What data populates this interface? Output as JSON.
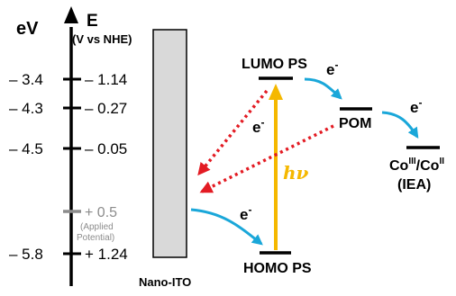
{
  "axis": {
    "left_unit": "eV",
    "right_unit": "E",
    "right_unit_sub": "(V vs NHE)",
    "ticks": [
      {
        "ev": "– 3.4",
        "v": "– 1.14"
      },
      {
        "ev": "– 4.3",
        "v": "– 0.27"
      },
      {
        "ev": "– 4.5",
        "v": "– 0.05"
      },
      {
        "ev": "– 5.8",
        "v": "+ 1.24"
      }
    ],
    "applied": {
      "v": "+ 0.5",
      "note_line1": "(Applied",
      "note_line2": "Potential)"
    }
  },
  "electrode": {
    "label": "Nano-ITO"
  },
  "levels": {
    "lumo": "LUMO PS",
    "homo": "HOMO PS",
    "pom": "POM",
    "co_line1": "Co",
    "co_sup1": "III",
    "co_mid": "/Co",
    "co_sup2": "II",
    "co_line2": "(IEA)"
  },
  "labels": {
    "e": "e",
    "minus": "-",
    "hv_h": "h",
    "hv_nu": "ν"
  },
  "colors": {
    "electron_blue": "#1aa7d9",
    "excitation_gold": "#f5b800",
    "recombination_red": "#e31b23",
    "electrode_fill": "#d9d9d9",
    "applied_gray": "#8c8c8c"
  }
}
